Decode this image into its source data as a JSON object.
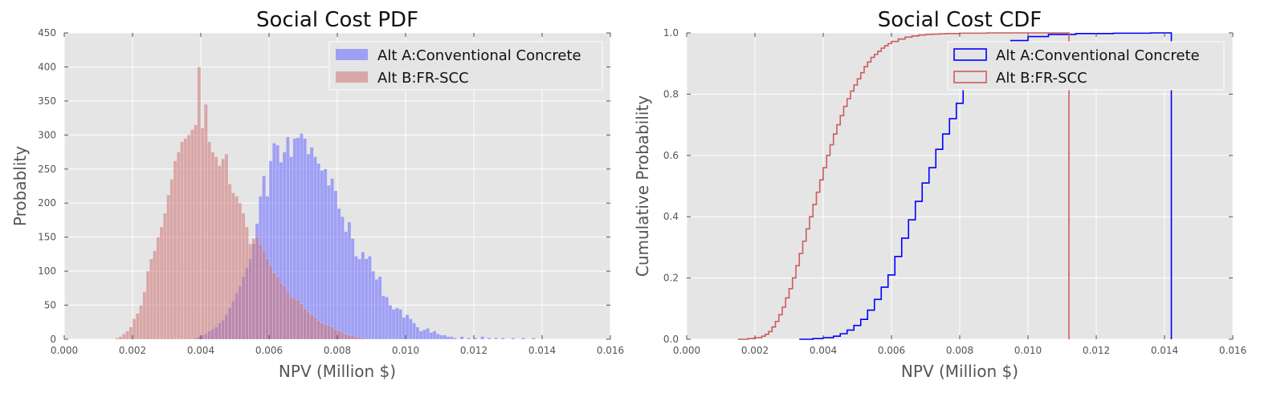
{
  "chart_data": [
    {
      "type": "histogram",
      "title": "Social Cost PDF",
      "xlabel": "NPV (Million $)",
      "ylabel": "Probablity",
      "xlim": [
        0,
        0.016
      ],
      "ylim": [
        0,
        450
      ],
      "xticks": [
        "0.000",
        "0.002",
        "0.004",
        "0.006",
        "0.008",
        "0.010",
        "0.012",
        "0.014",
        "0.016"
      ],
      "yticks": [
        "0",
        "50",
        "100",
        "150",
        "200",
        "250",
        "300",
        "350",
        "400",
        "450"
      ],
      "grid": true,
      "legend_position": "top-right",
      "series": [
        {
          "name": "Alt A:Conventional Concrete",
          "color": "#6666ff",
          "bins": [
            [
              0.0038,
              2
            ],
            [
              0.0039,
              4
            ],
            [
              0.004,
              6
            ],
            [
              0.0041,
              8
            ],
            [
              0.0042,
              12
            ],
            [
              0.0043,
              15
            ],
            [
              0.0044,
              18
            ],
            [
              0.0045,
              24
            ],
            [
              0.0046,
              28
            ],
            [
              0.0047,
              36
            ],
            [
              0.0048,
              46
            ],
            [
              0.0049,
              56
            ],
            [
              0.005,
              68
            ],
            [
              0.0051,
              78
            ],
            [
              0.0052,
              92
            ],
            [
              0.0053,
              105
            ],
            [
              0.0054,
              118
            ],
            [
              0.0055,
              140
            ],
            [
              0.0056,
              170
            ],
            [
              0.0057,
              210
            ],
            [
              0.0058,
              240
            ],
            [
              0.0059,
              210
            ],
            [
              0.006,
              262
            ],
            [
              0.0061,
              288
            ],
            [
              0.0062,
              285
            ],
            [
              0.0063,
              260
            ],
            [
              0.0064,
              275
            ],
            [
              0.0065,
              297
            ],
            [
              0.0066,
              268
            ],
            [
              0.0067,
              295
            ],
            [
              0.0068,
              296
            ],
            [
              0.0069,
              302
            ],
            [
              0.007,
              295
            ],
            [
              0.0071,
              272
            ],
            [
              0.0072,
              282
            ],
            [
              0.0073,
              268
            ],
            [
              0.0074,
              258
            ],
            [
              0.0075,
              248
            ],
            [
              0.0076,
              250
            ],
            [
              0.0077,
              226
            ],
            [
              0.0078,
              236
            ],
            [
              0.0079,
              218
            ],
            [
              0.008,
              192
            ],
            [
              0.0081,
              180
            ],
            [
              0.0082,
              158
            ],
            [
              0.0083,
              172
            ],
            [
              0.0084,
              148
            ],
            [
              0.0085,
              122
            ],
            [
              0.0086,
              118
            ],
            [
              0.0087,
              128
            ],
            [
              0.0088,
              118
            ],
            [
              0.0089,
              122
            ],
            [
              0.009,
              100
            ],
            [
              0.0091,
              88
            ],
            [
              0.0092,
              92
            ],
            [
              0.0093,
              64
            ],
            [
              0.0094,
              62
            ],
            [
              0.0095,
              50
            ],
            [
              0.0096,
              44
            ],
            [
              0.0097,
              46
            ],
            [
              0.0098,
              44
            ],
            [
              0.0099,
              32
            ],
            [
              0.01,
              36
            ],
            [
              0.0101,
              30
            ],
            [
              0.0102,
              24
            ],
            [
              0.0103,
              18
            ],
            [
              0.0104,
              12
            ],
            [
              0.0105,
              14
            ],
            [
              0.0106,
              16
            ],
            [
              0.0107,
              10
            ],
            [
              0.0108,
              12
            ],
            [
              0.0109,
              8
            ],
            [
              0.011,
              6
            ],
            [
              0.0111,
              6
            ],
            [
              0.0112,
              4
            ],
            [
              0.0113,
              4
            ],
            [
              0.0114,
              2
            ],
            [
              0.0116,
              4
            ],
            [
              0.0118,
              2
            ],
            [
              0.012,
              2
            ],
            [
              0.0122,
              4
            ],
            [
              0.0124,
              2
            ],
            [
              0.0126,
              2
            ],
            [
              0.0128,
              2
            ],
            [
              0.0131,
              2
            ],
            [
              0.0134,
              2
            ],
            [
              0.0137,
              2
            ]
          ]
        },
        {
          "name": "Alt B:FR-SCC",
          "color": "#cd7575",
          "bins": [
            [
              0.0015,
              2
            ],
            [
              0.0016,
              4
            ],
            [
              0.0017,
              8
            ],
            [
              0.0018,
              12
            ],
            [
              0.0019,
              18
            ],
            [
              0.002,
              30
            ],
            [
              0.0021,
              38
            ],
            [
              0.0022,
              50
            ],
            [
              0.0023,
              70
            ],
            [
              0.0024,
              100
            ],
            [
              0.0025,
              118
            ],
            [
              0.0026,
              130
            ],
            [
              0.0027,
              150
            ],
            [
              0.0028,
              165
            ],
            [
              0.0029,
              185
            ],
            [
              0.003,
              212
            ],
            [
              0.0031,
              235
            ],
            [
              0.0032,
              262
            ],
            [
              0.0033,
              275
            ],
            [
              0.0034,
              290
            ],
            [
              0.0035,
              295
            ],
            [
              0.0036,
              300
            ],
            [
              0.0037,
              308
            ],
            [
              0.0038,
              315
            ],
            [
              0.0039,
              400
            ],
            [
              0.004,
              310
            ],
            [
              0.0041,
              345
            ],
            [
              0.0042,
              290
            ],
            [
              0.0043,
              275
            ],
            [
              0.0044,
              268
            ],
            [
              0.0045,
              255
            ],
            [
              0.0046,
              265
            ],
            [
              0.0047,
              272
            ],
            [
              0.0048,
              228
            ],
            [
              0.0049,
              215
            ],
            [
              0.005,
              210
            ],
            [
              0.0051,
              200
            ],
            [
              0.0052,
              185
            ],
            [
              0.0053,
              165
            ],
            [
              0.0054,
              140
            ],
            [
              0.0055,
              148
            ],
            [
              0.0056,
              150
            ],
            [
              0.0057,
              140
            ],
            [
              0.0058,
              130
            ],
            [
              0.0059,
              118
            ],
            [
              0.006,
              108
            ],
            [
              0.0061,
              98
            ],
            [
              0.0062,
              92
            ],
            [
              0.0063,
              82
            ],
            [
              0.0064,
              78
            ],
            [
              0.0065,
              70
            ],
            [
              0.0066,
              62
            ],
            [
              0.0067,
              60
            ],
            [
              0.0068,
              58
            ],
            [
              0.0069,
              52
            ],
            [
              0.007,
              45
            ],
            [
              0.0071,
              40
            ],
            [
              0.0072,
              36
            ],
            [
              0.0073,
              32
            ],
            [
              0.0074,
              28
            ],
            [
              0.0075,
              24
            ],
            [
              0.0076,
              22
            ],
            [
              0.0077,
              20
            ],
            [
              0.0078,
              18
            ],
            [
              0.0079,
              14
            ],
            [
              0.008,
              12
            ],
            [
              0.0081,
              10
            ],
            [
              0.0082,
              8
            ],
            [
              0.0083,
              6
            ],
            [
              0.0084,
              5
            ],
            [
              0.0085,
              4
            ],
            [
              0.0086,
              3
            ],
            [
              0.0087,
              2
            ]
          ]
        }
      ]
    },
    {
      "type": "line",
      "title": "Social Cost CDF",
      "xlabel": "NPV (Million $)",
      "ylabel": "Cumulative Probability",
      "xlim": [
        0,
        0.016
      ],
      "ylim": [
        0,
        1.0
      ],
      "xticks": [
        "0.000",
        "0.002",
        "0.004",
        "0.006",
        "0.008",
        "0.010",
        "0.012",
        "0.014",
        "0.016"
      ],
      "yticks": [
        "0.0",
        "0.2",
        "0.4",
        "0.6",
        "0.8",
        "1.0"
      ],
      "grid": true,
      "legend_position": "top-right",
      "series": [
        {
          "name": "Alt A:Conventional Concrete",
          "color": "#0000ff",
          "x": [
            0.0033,
            0.0037,
            0.004,
            0.0043,
            0.0045,
            0.0047,
            0.0049,
            0.0051,
            0.0053,
            0.0055,
            0.0057,
            0.0059,
            0.0061,
            0.0063,
            0.0065,
            0.0067,
            0.0069,
            0.0071,
            0.0073,
            0.0075,
            0.0077,
            0.0079,
            0.0081,
            0.0083,
            0.0085,
            0.0088,
            0.0091,
            0.0095,
            0.01,
            0.0106,
            0.0114,
            0.0125,
            0.0136,
            0.0142
          ],
          "y": [
            0.0,
            0.002,
            0.005,
            0.01,
            0.018,
            0.03,
            0.045,
            0.065,
            0.095,
            0.13,
            0.17,
            0.21,
            0.27,
            0.33,
            0.39,
            0.45,
            0.51,
            0.56,
            0.62,
            0.67,
            0.72,
            0.77,
            0.82,
            0.86,
            0.9,
            0.93,
            0.955,
            0.975,
            0.988,
            0.995,
            0.998,
            0.999,
            1.0,
            1.0
          ]
        },
        {
          "name": "Alt B:FR-SCC",
          "color": "#cd5c5c",
          "x": [
            0.0015,
            0.0018,
            0.002,
            0.0022,
            0.0023,
            0.0024,
            0.0025,
            0.0026,
            0.0027,
            0.0028,
            0.0029,
            0.003,
            0.0031,
            0.0032,
            0.0033,
            0.0034,
            0.0035,
            0.0036,
            0.0037,
            0.0038,
            0.0039,
            0.004,
            0.0041,
            0.0042,
            0.0043,
            0.0044,
            0.0045,
            0.0046,
            0.0047,
            0.0048,
            0.0049,
            0.005,
            0.0051,
            0.0052,
            0.0053,
            0.0054,
            0.0055,
            0.0056,
            0.0057,
            0.0058,
            0.0059,
            0.006,
            0.0062,
            0.0064,
            0.0066,
            0.0068,
            0.007,
            0.0072,
            0.0074,
            0.0076,
            0.0078,
            0.008,
            0.0084,
            0.0088,
            0.0094,
            0.0102,
            0.0112
          ],
          "y": [
            0.0,
            0.002,
            0.005,
            0.01,
            0.016,
            0.025,
            0.04,
            0.058,
            0.08,
            0.105,
            0.135,
            0.165,
            0.2,
            0.24,
            0.28,
            0.32,
            0.36,
            0.4,
            0.44,
            0.48,
            0.52,
            0.56,
            0.6,
            0.635,
            0.67,
            0.7,
            0.73,
            0.76,
            0.785,
            0.81,
            0.83,
            0.85,
            0.87,
            0.89,
            0.905,
            0.92,
            0.93,
            0.94,
            0.95,
            0.958,
            0.965,
            0.972,
            0.98,
            0.986,
            0.99,
            0.993,
            0.995,
            0.996,
            0.997,
            0.998,
            0.998,
            0.999,
            0.999,
            1.0,
            1.0,
            1.0,
            1.0
          ]
        }
      ]
    }
  ]
}
